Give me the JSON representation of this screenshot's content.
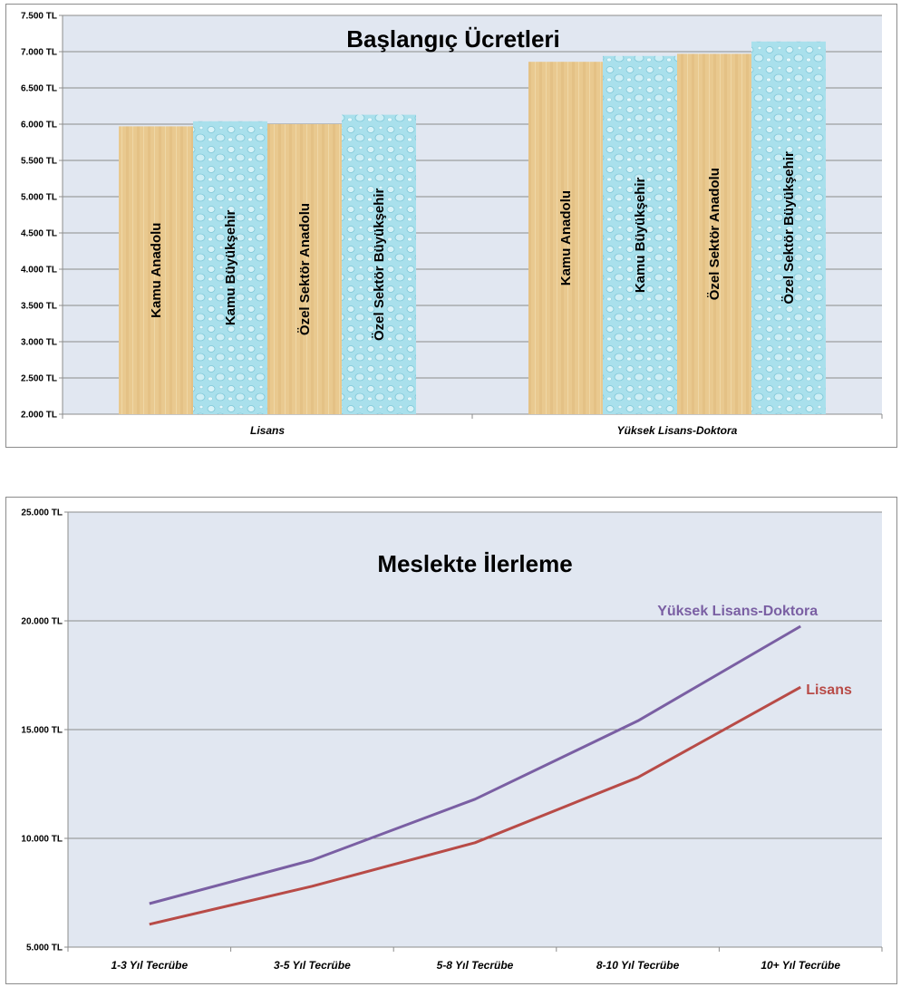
{
  "charts": [
    {
      "chart_data": {
        "type": "bar",
        "title": "Başlangıç Ücretleri",
        "categories": [
          "Lisans",
          "Yüksek Lisans-Doktora"
        ],
        "series": [
          {
            "name": "Kamu Anadolu",
            "values": [
              5970,
              6860
            ]
          },
          {
            "name": "Kamu Büyükşehir",
            "values": [
              6040,
              6940
            ]
          },
          {
            "name": "Özel Sektör Anadolu",
            "values": [
              6000,
              6970
            ]
          },
          {
            "name": "Özel Sektör Büyükşehir",
            "values": [
              6130,
              7140
            ]
          }
        ],
        "ylim": [
          2000,
          7500
        ],
        "yticks": [
          "2.000 TL",
          "2.500 TL",
          "3.000 TL",
          "3.500 TL",
          "4.000 TL",
          "4.500 TL",
          "5.000 TL",
          "5.500 TL",
          "6.000 TL",
          "6.500 TL",
          "7.000 TL",
          "7.500 TL"
        ],
        "grid": true,
        "legend": "none",
        "colors": {
          "plot_bg": "#e1e7f1",
          "anadolu": "#e9c98f",
          "buyuksehir": "#a9e0ec"
        }
      }
    },
    {
      "chart_data": {
        "type": "line",
        "title": "Meslekte İlerleme",
        "categories": [
          "1-3 Yıl Tecrübe",
          "3-5 Yıl Tecrübe",
          "5-8 Yıl Tecrübe",
          "8-10 Yıl Tecrübe",
          "10+ Yıl Tecrübe"
        ],
        "series": [
          {
            "name": "Yüksek Lisans-Doktora",
            "values": [
              7000,
              9000,
              11800,
              15400,
              19750
            ],
            "color": "#7a5fa3"
          },
          {
            "name": "Lisans",
            "values": [
              6050,
              7800,
              9800,
              12800,
              16950
            ],
            "color": "#b84b47"
          }
        ],
        "ylim": [
          5000,
          25000
        ],
        "yticks": [
          "5.000 TL",
          "10.000 TL",
          "15.000 TL",
          "20.000 TL",
          "25.000 TL"
        ],
        "grid": true,
        "legend": "inline",
        "colors": {
          "plot_bg": "#e1e7f1"
        }
      }
    }
  ]
}
